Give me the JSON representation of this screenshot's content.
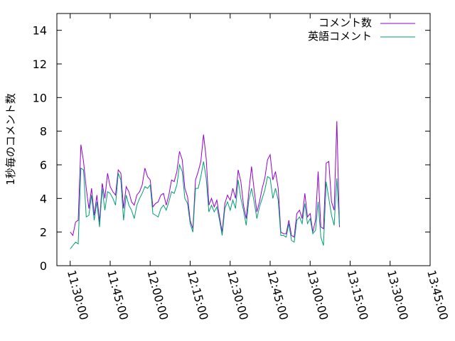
{
  "chart_data": {
    "type": "line",
    "title": "",
    "xlabel": "",
    "ylabel": "1秒毎のコメント数",
    "ylim": [
      0,
      15
    ],
    "yticks": [
      0,
      2,
      4,
      6,
      8,
      10,
      12,
      14
    ],
    "xlim": [
      "11:25:00",
      "13:45:00"
    ],
    "xticks": [
      "11:30:00",
      "11:45:00",
      "12:00:00",
      "12:15:00",
      "12:30:00",
      "12:45:00",
      "13:00:00",
      "13:15:00",
      "13:30:00",
      "13:45:00"
    ],
    "grid": false,
    "legend_position": "top-right",
    "series": [
      {
        "name": "コメント数",
        "color": "#9400d3",
        "points": [
          [
            "11:30:00",
            2.0
          ],
          [
            "11:31:00",
            1.8
          ],
          [
            "11:32:00",
            2.6
          ],
          [
            "11:33:00",
            2.7
          ],
          [
            "11:34:00",
            7.2
          ],
          [
            "11:35:00",
            6.2
          ],
          [
            "11:36:00",
            4.6
          ],
          [
            "11:37:00",
            3.4
          ],
          [
            "11:38:00",
            4.6
          ],
          [
            "11:39:00",
            3.0
          ],
          [
            "11:40:00",
            4.2
          ],
          [
            "11:41:00",
            2.6
          ],
          [
            "11:42:00",
            4.9
          ],
          [
            "11:43:00",
            4.0
          ],
          [
            "11:44:00",
            5.5
          ],
          [
            "11:45:00",
            4.7
          ],
          [
            "11:46:00",
            4.4
          ],
          [
            "11:47:00",
            4.2
          ],
          [
            "11:48:00",
            5.7
          ],
          [
            "11:49:00",
            5.5
          ],
          [
            "11:50:00",
            3.4
          ],
          [
            "11:51:00",
            4.7
          ],
          [
            "11:52:00",
            4.4
          ],
          [
            "11:53:00",
            3.8
          ],
          [
            "11:54:00",
            3.6
          ],
          [
            "11:55:00",
            4.2
          ],
          [
            "11:56:00",
            4.4
          ],
          [
            "11:57:00",
            4.8
          ],
          [
            "11:58:00",
            5.8
          ],
          [
            "11:59:00",
            5.3
          ],
          [
            "12:00:00",
            5.1
          ],
          [
            "12:01:00",
            3.5
          ],
          [
            "12:02:00",
            3.7
          ],
          [
            "12:03:00",
            3.8
          ],
          [
            "12:04:00",
            4.2
          ],
          [
            "12:05:00",
            4.3
          ],
          [
            "12:06:00",
            3.6
          ],
          [
            "12:07:00",
            4.2
          ],
          [
            "12:08:00",
            5.1
          ],
          [
            "12:09:00",
            5.0
          ],
          [
            "12:10:00",
            5.6
          ],
          [
            "12:11:00",
            6.8
          ],
          [
            "12:12:00",
            6.3
          ],
          [
            "12:13:00",
            4.6
          ],
          [
            "12:14:00",
            4.1
          ],
          [
            "12:15:00",
            2.7
          ],
          [
            "12:16:00",
            2.2
          ],
          [
            "12:17:00",
            5.1
          ],
          [
            "12:18:00",
            5.6
          ],
          [
            "12:19:00",
            6.2
          ],
          [
            "12:20:00",
            7.8
          ],
          [
            "12:21:00",
            6.4
          ],
          [
            "12:22:00",
            3.6
          ],
          [
            "12:23:00",
            4.0
          ],
          [
            "12:24:00",
            3.5
          ],
          [
            "12:25:00",
            3.9
          ],
          [
            "12:26:00",
            2.9
          ],
          [
            "12:27:00",
            2.0
          ],
          [
            "12:28:00",
            3.7
          ],
          [
            "12:29:00",
            4.2
          ],
          [
            "12:30:00",
            3.9
          ],
          [
            "12:31:00",
            4.6
          ],
          [
            "12:32:00",
            4.0
          ],
          [
            "12:33:00",
            5.7
          ],
          [
            "12:34:00",
            5.0
          ],
          [
            "12:35:00",
            3.6
          ],
          [
            "12:36:00",
            2.8
          ],
          [
            "12:37:00",
            4.4
          ],
          [
            "12:38:00",
            5.9
          ],
          [
            "12:39:00",
            4.5
          ],
          [
            "12:40:00",
            3.2
          ],
          [
            "12:41:00",
            3.8
          ],
          [
            "12:42:00",
            4.6
          ],
          [
            "12:43:00",
            5.2
          ],
          [
            "12:44:00",
            6.3
          ],
          [
            "12:45:00",
            6.6
          ],
          [
            "12:46:00",
            5.1
          ],
          [
            "12:47:00",
            5.6
          ],
          [
            "12:48:00",
            4.6
          ],
          [
            "12:49:00",
            2.0
          ],
          [
            "12:50:00",
            1.9
          ],
          [
            "12:51:00",
            1.9
          ],
          [
            "12:52:00",
            2.7
          ],
          [
            "12:53:00",
            1.8
          ],
          [
            "12:54:00",
            1.7
          ],
          [
            "12:55:00",
            3.1
          ],
          [
            "12:56:00",
            3.3
          ],
          [
            "12:57:00",
            2.8
          ],
          [
            "12:58:00",
            4.3
          ],
          [
            "12:59:00",
            2.9
          ],
          [
            "13:00:00",
            3.1
          ],
          [
            "13:01:00",
            2.0
          ],
          [
            "13:02:00",
            2.7
          ],
          [
            "13:03:00",
            5.6
          ],
          [
            "13:04:00",
            2.3
          ],
          [
            "13:05:00",
            2.2
          ],
          [
            "13:06:00",
            6.1
          ],
          [
            "13:07:00",
            6.2
          ],
          [
            "13:08:00",
            3.8
          ],
          [
            "13:09:00",
            3.3
          ],
          [
            "13:10:00",
            8.6
          ],
          [
            "13:11:00",
            2.3
          ]
        ]
      },
      {
        "name": "英語コメント",
        "color": "#009e73",
        "points": [
          [
            "11:30:00",
            1.0
          ],
          [
            "11:31:00",
            1.2
          ],
          [
            "11:32:00",
            1.4
          ],
          [
            "11:33:00",
            1.3
          ],
          [
            "11:34:00",
            5.8
          ],
          [
            "11:35:00",
            5.7
          ],
          [
            "11:36:00",
            2.9
          ],
          [
            "11:37:00",
            3.0
          ],
          [
            "11:38:00",
            4.2
          ],
          [
            "11:39:00",
            2.7
          ],
          [
            "11:40:00",
            3.8
          ],
          [
            "11:41:00",
            2.3
          ],
          [
            "11:42:00",
            4.6
          ],
          [
            "11:43:00",
            3.3
          ],
          [
            "11:44:00",
            4.4
          ],
          [
            "11:45:00",
            4.3
          ],
          [
            "11:46:00",
            4.0
          ],
          [
            "11:47:00",
            3.6
          ],
          [
            "11:48:00",
            5.5
          ],
          [
            "11:49:00",
            5.1
          ],
          [
            "11:50:00",
            2.7
          ],
          [
            "11:51:00",
            4.2
          ],
          [
            "11:52:00",
            3.6
          ],
          [
            "11:53:00",
            3.3
          ],
          [
            "11:54:00",
            2.8
          ],
          [
            "11:55:00",
            3.6
          ],
          [
            "11:56:00",
            4.0
          ],
          [
            "11:57:00",
            4.3
          ],
          [
            "11:58:00",
            4.7
          ],
          [
            "11:59:00",
            4.6
          ],
          [
            "12:00:00",
            4.8
          ],
          [
            "12:01:00",
            3.1
          ],
          [
            "12:02:00",
            3.0
          ],
          [
            "12:03:00",
            2.9
          ],
          [
            "12:04:00",
            3.4
          ],
          [
            "12:05:00",
            3.6
          ],
          [
            "12:06:00",
            3.3
          ],
          [
            "12:07:00",
            3.8
          ],
          [
            "12:08:00",
            4.4
          ],
          [
            "12:09:00",
            4.3
          ],
          [
            "12:10:00",
            4.8
          ],
          [
            "12:11:00",
            6.0
          ],
          [
            "12:12:00",
            5.6
          ],
          [
            "12:13:00",
            4.0
          ],
          [
            "12:14:00",
            3.7
          ],
          [
            "12:15:00",
            2.5
          ],
          [
            "12:16:00",
            2.0
          ],
          [
            "12:17:00",
            4.6
          ],
          [
            "12:18:00",
            4.6
          ],
          [
            "12:19:00",
            5.3
          ],
          [
            "12:20:00",
            6.2
          ],
          [
            "12:21:00",
            5.2
          ],
          [
            "12:22:00",
            3.2
          ],
          [
            "12:23:00",
            3.6
          ],
          [
            "12:24:00",
            3.2
          ],
          [
            "12:25:00",
            3.5
          ],
          [
            "12:26:00",
            2.7
          ],
          [
            "12:27:00",
            1.8
          ],
          [
            "12:28:00",
            3.4
          ],
          [
            "12:29:00",
            3.8
          ],
          [
            "12:30:00",
            3.3
          ],
          [
            "12:31:00",
            3.9
          ],
          [
            "12:32:00",
            3.4
          ],
          [
            "12:33:00",
            5.1
          ],
          [
            "12:34:00",
            4.0
          ],
          [
            "12:35:00",
            3.3
          ],
          [
            "12:36:00",
            2.4
          ],
          [
            "12:37:00",
            3.9
          ],
          [
            "12:38:00",
            4.6
          ],
          [
            "12:39:00",
            3.8
          ],
          [
            "12:40:00",
            2.8
          ],
          [
            "12:41:00",
            3.5
          ],
          [
            "12:42:00",
            4.0
          ],
          [
            "12:43:00",
            4.5
          ],
          [
            "12:44:00",
            5.3
          ],
          [
            "12:45:00",
            5.2
          ],
          [
            "12:46:00",
            4.0
          ],
          [
            "12:47:00",
            4.6
          ],
          [
            "12:48:00",
            3.9
          ],
          [
            "12:49:00",
            1.8
          ],
          [
            "12:50:00",
            1.8
          ],
          [
            "12:51:00",
            1.7
          ],
          [
            "12:52:00",
            2.5
          ],
          [
            "12:53:00",
            1.5
          ],
          [
            "12:54:00",
            1.4
          ],
          [
            "12:55:00",
            2.7
          ],
          [
            "12:56:00",
            2.9
          ],
          [
            "12:57:00",
            2.5
          ],
          [
            "12:58:00",
            3.7
          ],
          [
            "12:59:00",
            2.5
          ],
          [
            "13:00:00",
            2.8
          ],
          [
            "13:01:00",
            1.9
          ],
          [
            "13:02:00",
            2.1
          ],
          [
            "13:03:00",
            3.8
          ],
          [
            "13:04:00",
            1.7
          ],
          [
            "13:05:00",
            1.2
          ],
          [
            "13:06:00",
            5.0
          ],
          [
            "13:07:00",
            4.0
          ],
          [
            "13:08:00",
            3.0
          ],
          [
            "13:09:00",
            2.4
          ],
          [
            "13:10:00",
            5.2
          ],
          [
            "13:11:00",
            2.4
          ]
        ]
      }
    ]
  }
}
